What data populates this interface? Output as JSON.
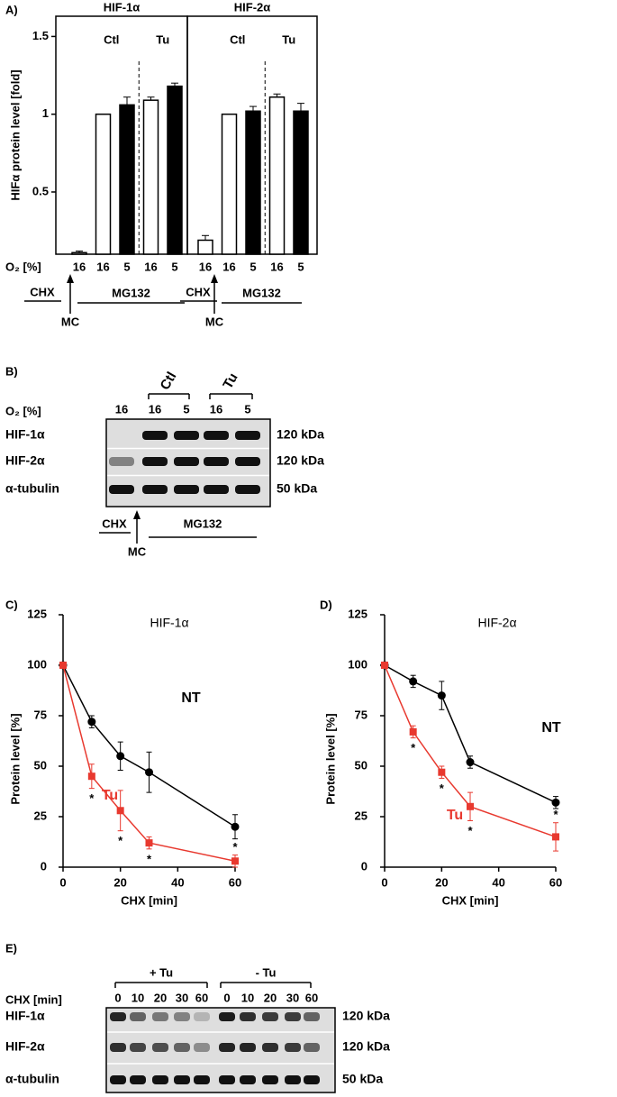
{
  "chart_data": [
    {
      "type": "bar",
      "panel": "A)",
      "title": "HIF-1α",
      "ylabel": "HIFα protein level [fold]",
      "xlabel": "O₂ [%]",
      "categories": [
        "16",
        "16",
        "5",
        "16",
        "5"
      ],
      "values": [
        0.11,
        1,
        1.06,
        1.09,
        1.18
      ],
      "errors": [
        0.01,
        0,
        0.05,
        0.02,
        0.02
      ],
      "colors": [
        "#ffffff",
        "#ffffff",
        "#000000",
        "#ffffff",
        "#000000"
      ],
      "groups": [
        "Ctl",
        "Tu"
      ],
      "treatments": [
        "CHX",
        "MC",
        "MG132"
      ],
      "ylim": [
        0.1,
        1.63
      ],
      "yticks": [
        0.5,
        1,
        1.5
      ]
    },
    {
      "type": "bar",
      "title": "HIF-2α",
      "categories": [
        "16",
        "16",
        "5",
        "16",
        "5"
      ],
      "values": [
        0.19,
        1,
        1.02,
        1.11,
        1.02
      ],
      "errors": [
        0.03,
        0,
        0.03,
        0.02,
        0.05
      ],
      "colors": [
        "#ffffff",
        "#ffffff",
        "#000000",
        "#ffffff",
        "#000000"
      ],
      "groups": [
        "Ctl",
        "Tu"
      ],
      "treatments": [
        "CHX",
        "MC",
        "MG132"
      ],
      "ylim": [
        0.1,
        1.63
      ]
    },
    {
      "type": "line",
      "panel": "C)",
      "title": "HIF-1α",
      "xlabel": "CHX [min]",
      "ylabel": "Protein level [%]",
      "x": [
        0,
        10,
        20,
        30,
        60
      ],
      "series": [
        {
          "name": "NT",
          "color": "#000000",
          "marker": "circle",
          "values": [
            100,
            72,
            55,
            47,
            20
          ],
          "errors": [
            0,
            3,
            7,
            10,
            6
          ]
        },
        {
          "name": "Tu",
          "color": "#e8392f",
          "marker": "square",
          "values": [
            100,
            45,
            28,
            12,
            3
          ],
          "errors": [
            0,
            6,
            10,
            3,
            3
          ]
        }
      ],
      "significance": [
        null,
        "*",
        "*",
        "*",
        "*"
      ],
      "xlim": [
        0,
        60
      ],
      "ylim": [
        0,
        125
      ],
      "xticks": [
        0,
        20,
        40,
        60
      ],
      "yticks": [
        0,
        25,
        50,
        75,
        100,
        125
      ]
    },
    {
      "type": "line",
      "panel": "D)",
      "title": "HIF-2α",
      "xlabel": "CHX [min]",
      "ylabel": "Protein level [%]",
      "x": [
        0,
        10,
        20,
        30,
        60
      ],
      "series": [
        {
          "name": "NT",
          "color": "#000000",
          "marker": "circle",
          "values": [
            100,
            92,
            85,
            52,
            32
          ],
          "errors": [
            0,
            3,
            7,
            3,
            3
          ]
        },
        {
          "name": "Tu",
          "color": "#e8392f",
          "marker": "square",
          "values": [
            100,
            67,
            47,
            30,
            15
          ],
          "errors": [
            0,
            3,
            3,
            7,
            7
          ]
        }
      ],
      "significance": [
        null,
        "*",
        "*",
        "*",
        "*"
      ],
      "xlim": [
        0,
        60
      ],
      "ylim": [
        0,
        125
      ],
      "xticks": [
        0,
        20,
        40,
        60
      ],
      "yticks": [
        0,
        25,
        50,
        75,
        100,
        125
      ]
    }
  ],
  "blots": [
    {
      "panel": "B)",
      "lane_header": "O₂ [%]",
      "lanes": [
        "16",
        "16",
        "5",
        "16",
        "5"
      ],
      "groups": [
        "Ctl",
        "Tu"
      ],
      "rows": [
        {
          "protein": "HIF-1α",
          "size": "120 kDa"
        },
        {
          "protein": "HIF-2α",
          "size": "120 kDa"
        },
        {
          "protein": "α-tubulin",
          "size": "50 kDa"
        }
      ],
      "treatments": [
        "CHX",
        "MC",
        "MG132"
      ]
    },
    {
      "panel": "E)",
      "lane_header": "CHX [min]",
      "lanes": [
        "0",
        "10",
        "20",
        "30",
        "60",
        "0",
        "10",
        "20",
        "30",
        "60"
      ],
      "groups": [
        "+ Tu",
        "- Tu"
      ],
      "rows": [
        {
          "protein": "HIF-1α",
          "size": "120 kDa"
        },
        {
          "protein": "HIF-2α",
          "size": "120 kDa"
        },
        {
          "protein": "α-tubulin",
          "size": "50 kDa"
        }
      ]
    }
  ]
}
